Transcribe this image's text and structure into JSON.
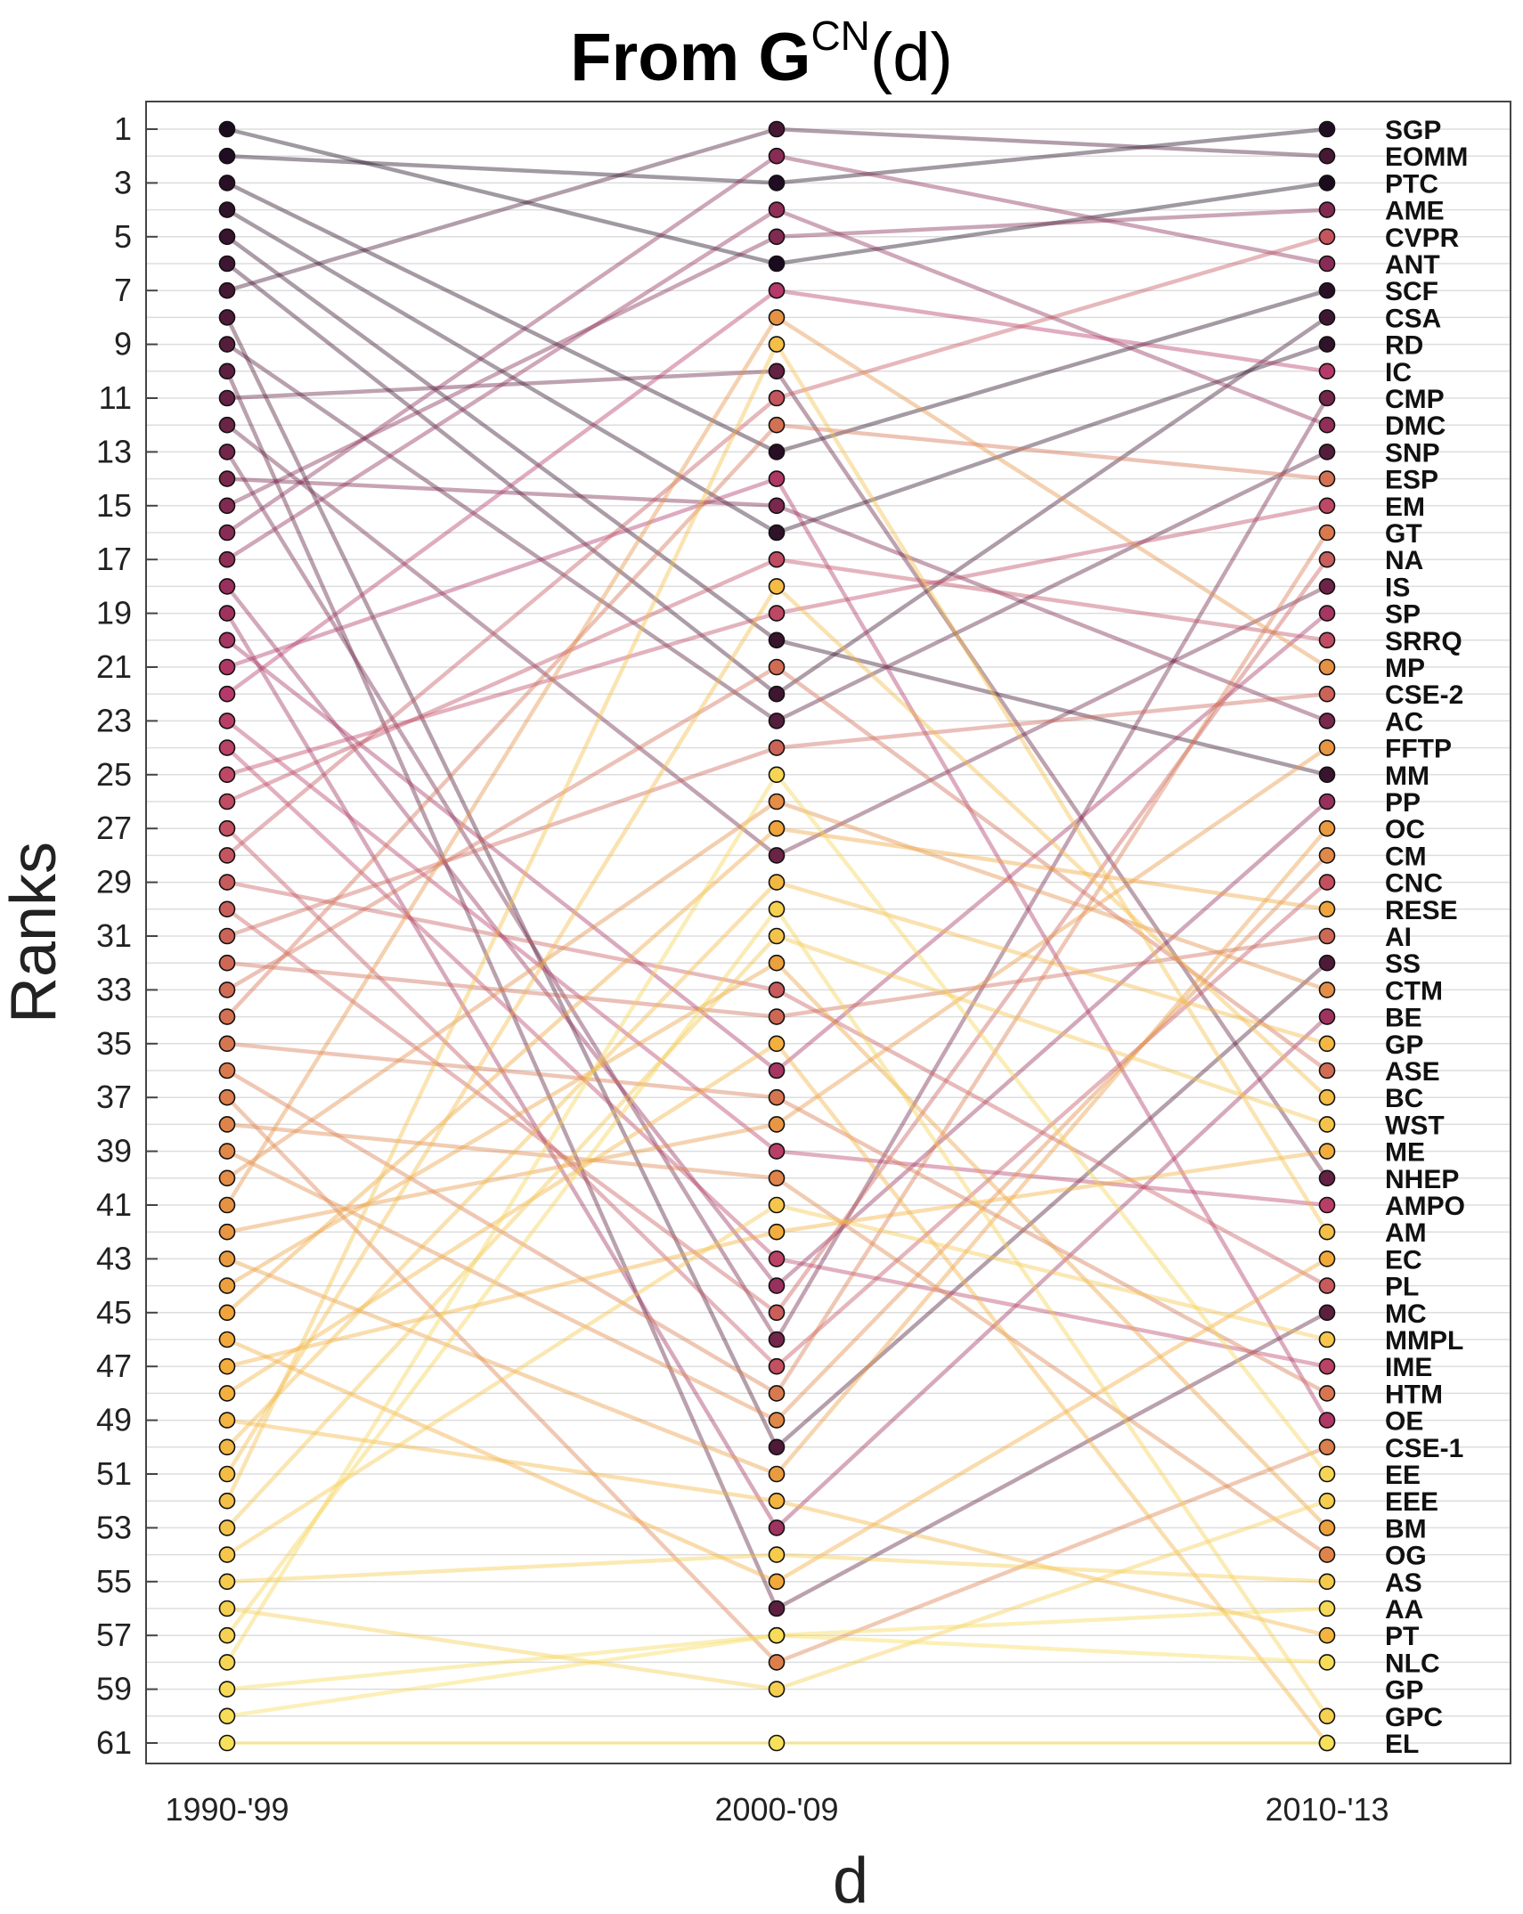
{
  "chart_data": {
    "type": "line",
    "title": "From G",
    "title_superscript": "CN",
    "title_suffix": "(d)",
    "xlabel": "d",
    "ylabel": "Ranks",
    "x_categories": [
      "1990-'99",
      "2000-'09",
      "2010-'13"
    ],
    "ylim": [
      1,
      61
    ],
    "y_ticks": [
      1,
      3,
      5,
      7,
      9,
      11,
      13,
      15,
      17,
      19,
      21,
      23,
      25,
      27,
      29,
      31,
      33,
      35,
      37,
      39,
      41,
      43,
      45,
      47,
      49,
      51,
      53,
      55,
      57,
      59,
      61
    ],
    "grid": true,
    "right_labels": [
      "SGP",
      "EOMM",
      "PTC",
      "AME",
      "CVPR",
      "ANT",
      "SCF",
      "CSA",
      "RD",
      "IC",
      "CMP",
      "DMC",
      "SNP",
      "ESP",
      "EM",
      "GT",
      "NA",
      "IS",
      "SP",
      "SRRQ",
      "MP",
      "CSE-2",
      "AC",
      "FFTP",
      "MM",
      "PP",
      "OC",
      "CM",
      "CNC",
      "RESE",
      "AI",
      "SS",
      "CTM",
      "BE",
      "GP",
      "ASE",
      "BC",
      "WST",
      "ME",
      "NHEP",
      "AMPO",
      "AM",
      "EC",
      "PL",
      "MC",
      "MMPL",
      "IME",
      "HTM",
      "OE",
      "CSE-1",
      "EE",
      "EEE",
      "BM",
      "OG",
      "AS",
      "AA",
      "PT",
      "NLC",
      "GP",
      "GPC",
      "EL"
    ],
    "series": [
      {
        "ranks": [
          1,
          6,
          3
        ]
      },
      {
        "ranks": [
          2,
          3,
          1
        ]
      },
      {
        "ranks": [
          3,
          13,
          7
        ]
      },
      {
        "ranks": [
          4,
          16,
          9
        ]
      },
      {
        "ranks": [
          5,
          20,
          25
        ]
      },
      {
        "ranks": [
          6,
          22,
          8
        ]
      },
      {
        "ranks": [
          7,
          1,
          2
        ]
      },
      {
        "ranks": [
          8,
          50,
          32
        ]
      },
      {
        "ranks": [
          9,
          23,
          13
        ]
      },
      {
        "ranks": [
          10,
          56,
          45
        ]
      },
      {
        "ranks": [
          11,
          10,
          40
        ]
      },
      {
        "ranks": [
          12,
          28,
          18
        ]
      },
      {
        "ranks": [
          13,
          46,
          11
        ]
      },
      {
        "ranks": [
          14,
          15,
          23
        ]
      },
      {
        "ranks": [
          15,
          5,
          4
        ]
      },
      {
        "ranks": [
          16,
          2,
          6
        ]
      },
      {
        "ranks": [
          17,
          4,
          12
        ]
      },
      {
        "ranks": [
          18,
          44,
          26
        ]
      },
      {
        "ranks": [
          19,
          53,
          34
        ]
      },
      {
        "ranks": [
          20,
          36,
          19
        ]
      },
      {
        "ranks": [
          21,
          14,
          49
        ]
      },
      {
        "ranks": [
          22,
          7,
          10
        ]
      },
      {
        "ranks": [
          23,
          39,
          41
        ]
      },
      {
        "ranks": [
          24,
          43,
          47
        ]
      },
      {
        "ranks": [
          25,
          19,
          15
        ]
      },
      {
        "ranks": [
          26,
          17,
          20
        ]
      },
      {
        "ranks": [
          27,
          47,
          29
        ]
      },
      {
        "ranks": [
          28,
          11,
          5
        ]
      },
      {
        "ranks": [
          29,
          33,
          44
        ]
      },
      {
        "ranks": [
          30,
          45,
          17
        ]
      },
      {
        "ranks": [
          31,
          24,
          22
        ]
      },
      {
        "ranks": [
          32,
          34,
          31
        ]
      },
      {
        "ranks": [
          33,
          21,
          36
        ]
      },
      {
        "ranks": [
          34,
          12,
          14
        ]
      },
      {
        "ranks": [
          35,
          37,
          48
        ]
      },
      {
        "ranks": [
          36,
          48,
          16
        ]
      },
      {
        "ranks": [
          37,
          58,
          50
        ]
      },
      {
        "ranks": [
          38,
          40,
          54
        ]
      },
      {
        "ranks": [
          39,
          49,
          28
        ]
      },
      {
        "ranks": [
          40,
          26,
          33
        ]
      },
      {
        "ranks": [
          41,
          8,
          21
        ]
      },
      {
        "ranks": [
          42,
          38,
          24
        ]
      },
      {
        "ranks": [
          43,
          51,
          27
        ]
      },
      {
        "ranks": [
          44,
          32,
          53
        ]
      },
      {
        "ranks": [
          45,
          27,
          30
        ]
      },
      {
        "ranks": [
          46,
          55,
          43
        ]
      },
      {
        "ranks": [
          47,
          42,
          39
        ]
      },
      {
        "ranks": [
          48,
          35,
          61
        ]
      },
      {
        "ranks": [
          49,
          52,
          57
        ]
      },
      {
        "ranks": [
          50,
          29,
          35
        ]
      },
      {
        "ranks": [
          51,
          18,
          37
        ]
      },
      {
        "ranks": [
          52,
          9,
          42
        ]
      },
      {
        "ranks": [
          53,
          31,
          38
        ]
      },
      {
        "ranks": [
          54,
          41,
          46
        ]
      },
      {
        "ranks": [
          55,
          54,
          55
        ]
      },
      {
        "ranks": [
          56,
          59,
          52
        ]
      },
      {
        "ranks": [
          57,
          30,
          60
        ]
      },
      {
        "ranks": [
          58,
          25,
          51
        ]
      },
      {
        "ranks": [
          59,
          57,
          56
        ]
      },
      {
        "ranks": [
          60,
          57,
          58
        ]
      },
      {
        "ranks": [
          61,
          61,
          61
        ]
      }
    ],
    "colors": {
      "low_rank": "#1a0b1f",
      "mid_rank": "#b5396a",
      "high_rank": "#f2a93a",
      "highest_rank": "#f7e05a",
      "grid": "#dddddd",
      "axis": "#444444"
    }
  }
}
